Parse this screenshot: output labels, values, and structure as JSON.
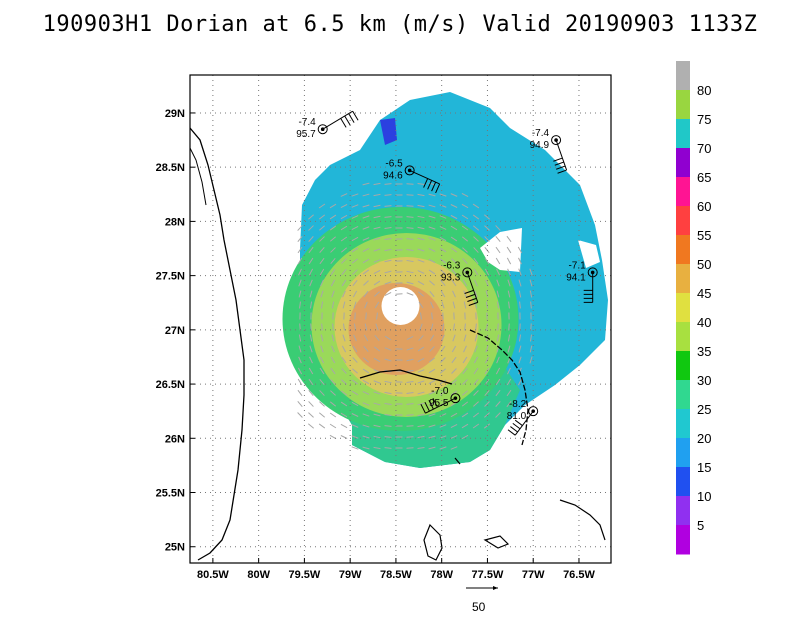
{
  "title": "190903H1 Dorian at 6.5 km (m/s) Valid 20190903 1133Z",
  "map": {
    "lon_range": [
      -80.75,
      -76.15
    ],
    "lat_range": [
      24.85,
      29.35
    ],
    "lon_ticks": [
      {
        "value": -80.5,
        "label": "80.5W"
      },
      {
        "value": -80.0,
        "label": "80W"
      },
      {
        "value": -79.5,
        "label": "79.5W"
      },
      {
        "value": -79.0,
        "label": "79W"
      },
      {
        "value": -78.5,
        "label": "78.5W"
      },
      {
        "value": -78.0,
        "label": "78W"
      },
      {
        "value": -77.5,
        "label": "77.5W"
      },
      {
        "value": -77.0,
        "label": "77W"
      },
      {
        "value": -76.5,
        "label": "76.5W"
      }
    ],
    "lat_ticks": [
      {
        "value": 25.0,
        "label": "25N"
      },
      {
        "value": 25.5,
        "label": "25.5N"
      },
      {
        "value": 26.0,
        "label": "26N"
      },
      {
        "value": 26.5,
        "label": "26.5N"
      },
      {
        "value": 27.0,
        "label": "27N"
      },
      {
        "value": 27.5,
        "label": "27.5N"
      },
      {
        "value": 28.0,
        "label": "28N"
      },
      {
        "value": 28.5,
        "label": "28.5N"
      },
      {
        "value": 29.0,
        "label": "29N"
      }
    ],
    "storm_center": {
      "lon": -78.45,
      "lat": 27.1
    },
    "grid": true
  },
  "observations": [
    {
      "lon": -79.3,
      "lat": 28.85,
      "temp": "-7.4",
      "pressure": "95.7"
    },
    {
      "lon": -78.35,
      "lat": 28.47,
      "temp": "-6.5",
      "pressure": "94.6"
    },
    {
      "lon": -76.75,
      "lat": 28.75,
      "temp": "-7.4",
      "pressure": "94.9"
    },
    {
      "lon": -77.72,
      "lat": 27.53,
      "temp": "-6.3",
      "pressure": "93.3"
    },
    {
      "lon": -76.35,
      "lat": 27.53,
      "temp": "-7.1",
      "pressure": "94.1"
    },
    {
      "lon": -77.85,
      "lat": 26.37,
      "temp": "-7.0",
      "pressure": "95.5"
    },
    {
      "lon": -77.0,
      "lat": 26.25,
      "temp": "-8.2",
      "pressure": "81.0"
    }
  ],
  "colorbar": {
    "colors": [
      "#b0b0b0",
      "#99d640",
      "#20c8c8",
      "#9000d0",
      "#ff1493",
      "#ff4040",
      "#f07820",
      "#e8b040",
      "#e0e040",
      "#a8e040",
      "#10c810",
      "#30d890",
      "#20c8d0",
      "#20a0f0",
      "#2050f0",
      "#9030f0",
      "#b000e0"
    ],
    "labels": [
      "80",
      "75",
      "70",
      "65",
      "60",
      "55",
      "50",
      "45",
      "40",
      "35",
      "30",
      "25",
      "20",
      "15",
      "10",
      "5"
    ]
  },
  "scale_label": "50"
}
